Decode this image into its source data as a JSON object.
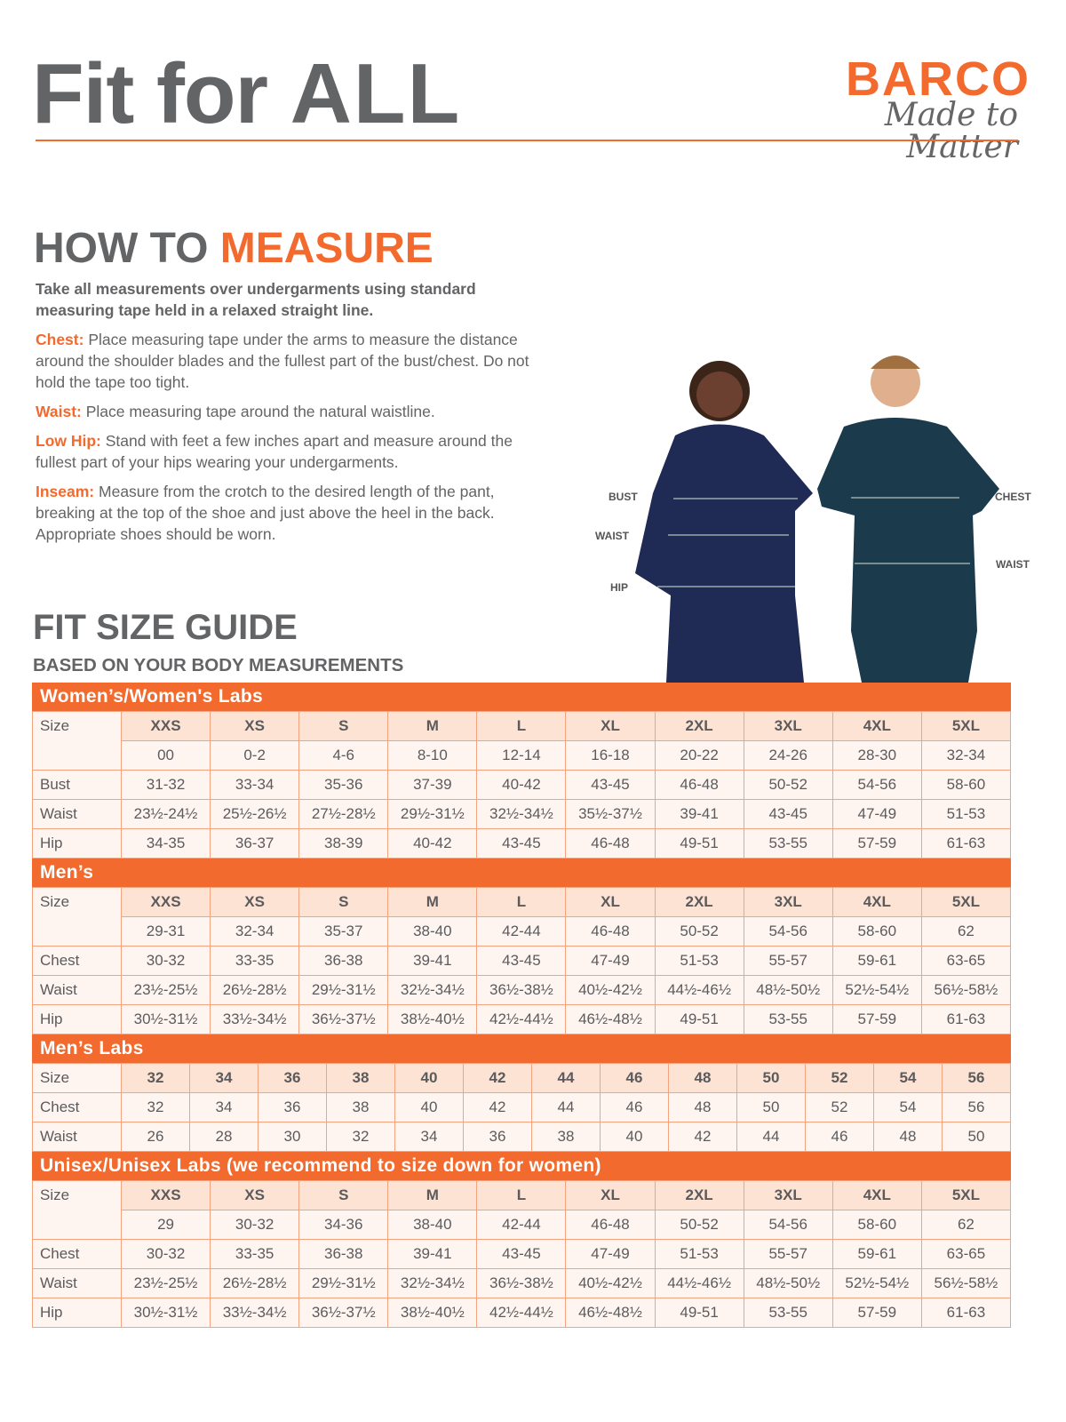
{
  "header": {
    "title_a": "Fit for ",
    "title_b": "ALL",
    "brand": "BARCO",
    "tagline": "Made to Matter",
    "accent": "#f26a2e"
  },
  "measure": {
    "title_a": "HOW TO ",
    "title_b": "MEASURE",
    "lead": "Take all measurements over undergarments using standard measuring tape held in a relaxed straight line.",
    "items": [
      {
        "term": "Chest:",
        "text": "Place measuring tape under the arms to measure the distance around the shoulder blades and the fullest part of the bust/chest. Do not hold the tape too tight."
      },
      {
        "term": "Waist:",
        "text": "Place measuring tape around the natural waistline."
      },
      {
        "term": "Low Hip:",
        "text": "Stand with feet a few inches apart and measure around the fullest part of your hips wearing your undergarments."
      },
      {
        "term": "Inseam:",
        "text": "Measure from the crotch to the desired length of the pant, breaking at the top of the shoe and just above the heel in the back. Appropriate shoes should be worn."
      }
    ]
  },
  "figure_labels": {
    "bust": "BUST",
    "waist_w": "WAIST",
    "hip": "HIP",
    "chest": "CHEST",
    "waist_m": "WAIST"
  },
  "guide": {
    "title": "FIT SIZE GUIDE",
    "subtitle": "BASED ON YOUR BODY MEASUREMENTS"
  },
  "tables": [
    {
      "title": "Women’s/Women's Labs",
      "rows": [
        {
          "label": "Size",
          "cells": [
            "XXS",
            "XS",
            "S",
            "M",
            "L",
            "XL",
            "2XL",
            "3XL",
            "4XL",
            "5XL"
          ]
        },
        {
          "label": "",
          "cells": [
            "00",
            "0-2",
            "4-6",
            "8-10",
            "12-14",
            "16-18",
            "20-22",
            "24-26",
            "28-30",
            "32-34"
          ]
        },
        {
          "label": "Bust",
          "cells": [
            "31-32",
            "33-34",
            "35-36",
            "37-39",
            "40-42",
            "43-45",
            "46-48",
            "50-52",
            "54-56",
            "58-60"
          ]
        },
        {
          "label": "Waist",
          "cells": [
            "23½-24½",
            "25½-26½",
            "27½-28½",
            "29½-31½",
            "32½-34½",
            "35½-37½",
            "39-41",
            "43-45",
            "47-49",
            "51-53"
          ]
        },
        {
          "label": "Hip",
          "cells": [
            "34-35",
            "36-37",
            "38-39",
            "40-42",
            "43-45",
            "46-48",
            "49-51",
            "53-55",
            "57-59",
            "61-63"
          ]
        }
      ]
    },
    {
      "title": "Men’s",
      "rows": [
        {
          "label": "Size",
          "cells": [
            "XXS",
            "XS",
            "S",
            "M",
            "L",
            "XL",
            "2XL",
            "3XL",
            "4XL",
            "5XL"
          ]
        },
        {
          "label": "",
          "cells": [
            "29-31",
            "32-34",
            "35-37",
            "38-40",
            "42-44",
            "46-48",
            "50-52",
            "54-56",
            "58-60",
            "62"
          ]
        },
        {
          "label": "Chest",
          "cells": [
            "30-32",
            "33-35",
            "36-38",
            "39-41",
            "43-45",
            "47-49",
            "51-53",
            "55-57",
            "59-61",
            "63-65"
          ]
        },
        {
          "label": "Waist",
          "cells": [
            "23½-25½",
            "26½-28½",
            "29½-31½",
            "32½-34½",
            "36½-38½",
            "40½-42½",
            "44½-46½",
            "48½-50½",
            "52½-54½",
            "56½-58½"
          ]
        },
        {
          "label": "Hip",
          "cells": [
            "30½-31½",
            "33½-34½",
            "36½-37½",
            "38½-40½",
            "42½-44½",
            "46½-48½",
            "49-51",
            "53-55",
            "57-59",
            "61-63"
          ]
        }
      ]
    },
    {
      "title": "Men’s Labs",
      "rows": [
        {
          "label": "Size",
          "cells": [
            "32",
            "34",
            "36",
            "38",
            "40",
            "42",
            "44",
            "46",
            "48",
            "50",
            "52",
            "54",
            "56"
          ]
        },
        {
          "label": "Chest",
          "cells": [
            "32",
            "34",
            "36",
            "38",
            "40",
            "42",
            "44",
            "46",
            "48",
            "50",
            "52",
            "54",
            "56"
          ]
        },
        {
          "label": "Waist",
          "cells": [
            "26",
            "28",
            "30",
            "32",
            "34",
            "36",
            "38",
            "40",
            "42",
            "44",
            "46",
            "48",
            "50"
          ]
        }
      ]
    },
    {
      "title": "Unisex/Unisex Labs (we recommend to size down for women)",
      "rows": [
        {
          "label": "Size",
          "cells": [
            "XXS",
            "XS",
            "S",
            "M",
            "L",
            "XL",
            "2XL",
            "3XL",
            "4XL",
            "5XL"
          ]
        },
        {
          "label": "",
          "cells": [
            "29",
            "30-32",
            "34-36",
            "38-40",
            "42-44",
            "46-48",
            "50-52",
            "54-56",
            "58-60",
            "62"
          ]
        },
        {
          "label": "Chest",
          "cells": [
            "30-32",
            "33-35",
            "36-38",
            "39-41",
            "43-45",
            "47-49",
            "51-53",
            "55-57",
            "59-61",
            "63-65"
          ]
        },
        {
          "label": "Waist",
          "cells": [
            "23½-25½",
            "26½-28½",
            "29½-31½",
            "32½-34½",
            "36½-38½",
            "40½-42½",
            "44½-46½",
            "48½-50½",
            "52½-54½",
            "56½-58½"
          ]
        },
        {
          "label": "Hip",
          "cells": [
            "30½-31½",
            "33½-34½",
            "36½-37½",
            "38½-40½",
            "42½-44½",
            "46½-48½",
            "49-51",
            "53-55",
            "57-59",
            "61-63"
          ]
        }
      ]
    }
  ]
}
